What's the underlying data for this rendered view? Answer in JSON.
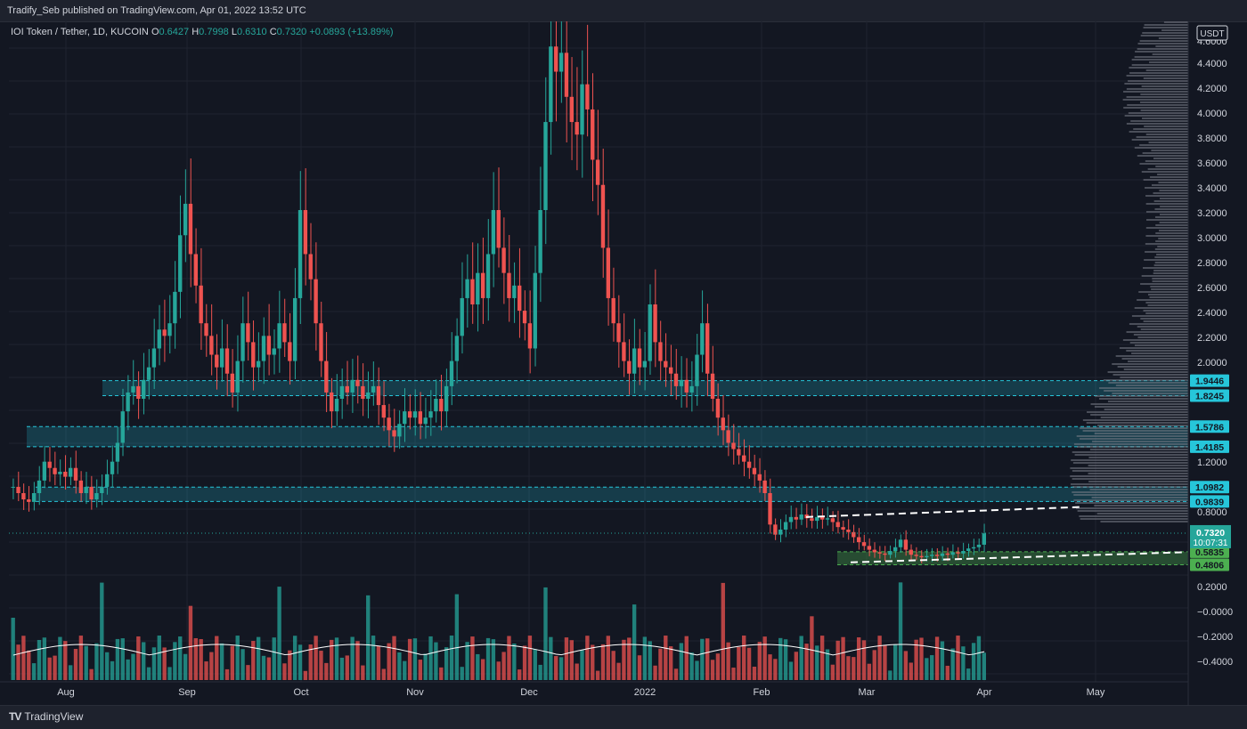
{
  "header": {
    "published": "Tradify_Seb published on TradingView.com, Apr 01, 2022 13:52 UTC"
  },
  "footer": {
    "brand_logo": "TV",
    "brand_text": "TradingView"
  },
  "colors": {
    "background": "#131722",
    "up": "#26a69a",
    "down": "#ef5350",
    "zone": "#26c6da",
    "support_zone": "#4caf50"
  },
  "chart_data": {
    "type": "candlestick",
    "symbol": "IOI Token / Tether, 1D, KUCOIN",
    "ohlc": {
      "O": "0.6427",
      "H": "0.7998",
      "L": "0.6310",
      "C": "0.7320",
      "change": "+0.0893 (+13.89%)"
    },
    "currency": "USDT",
    "y_ticks": [
      "4.6000",
      "4.4000",
      "4.2000",
      "4.0000",
      "3.8000",
      "3.6000",
      "3.4000",
      "3.2000",
      "3.0000",
      "2.8000",
      "2.6000",
      "2.4000",
      "2.2000",
      "2.0000",
      "1.2000",
      "0.8000",
      "0.2000",
      "−0.0000",
      "−0.2000",
      "−0.4000"
    ],
    "x_ticks": [
      "Aug",
      "Sep",
      "Oct",
      "Nov",
      "Dec",
      "2022",
      "Feb",
      "Mar",
      "Apr",
      "May"
    ],
    "ylim": [
      -0.45,
      4.8
    ],
    "price_labels": [
      {
        "text": "1.9446",
        "value": 1.9446,
        "color": "#26c6da"
      },
      {
        "text": "1.8245",
        "value": 1.8245,
        "color": "#26c6da"
      },
      {
        "text": "1.5786",
        "value": 1.5786,
        "color": "#26c6da"
      },
      {
        "text": "1.4185",
        "value": 1.4185,
        "color": "#26c6da"
      },
      {
        "text": "1.0982",
        "value": 1.0982,
        "color": "#26c6da"
      },
      {
        "text": "0.9839",
        "value": 0.9839,
        "color": "#26c6da"
      },
      {
        "text": "0.5835",
        "value": 0.5835,
        "color": "#4caf50"
      },
      {
        "text": "0.4806",
        "value": 0.4806,
        "color": "#4caf50"
      }
    ],
    "current_price": {
      "value": 0.732,
      "text": "0.7320",
      "countdown": "10:07:31"
    },
    "zones": [
      {
        "top": 1.9446,
        "bottom": 1.8245,
        "color": "#26c6da"
      },
      {
        "top": 1.5786,
        "bottom": 1.4185,
        "color": "#26c6da"
      },
      {
        "top": 1.0982,
        "bottom": 0.9839,
        "color": "#26c6da"
      },
      {
        "top": 0.5835,
        "bottom": 0.4806,
        "color": "#4caf50"
      }
    ],
    "close_series": [
      1.1,
      1.05,
      1.0,
      0.98,
      1.05,
      1.15,
      1.3,
      1.25,
      1.2,
      1.22,
      1.18,
      1.25,
      1.15,
      1.05,
      1.1,
      1.0,
      1.05,
      1.1,
      1.2,
      1.3,
      1.45,
      1.7,
      1.85,
      1.9,
      1.8,
      1.95,
      2.05,
      2.2,
      2.35,
      2.3,
      2.4,
      2.65,
      3.1,
      3.35,
      2.95,
      2.7,
      2.4,
      2.3,
      2.15,
      2.05,
      2.2,
      2.0,
      1.85,
      2.1,
      2.4,
      2.25,
      2.05,
      2.1,
      2.3,
      2.15,
      2.2,
      2.4,
      2.25,
      2.1,
      2.6,
      3.3,
      2.95,
      2.75,
      2.4,
      2.1,
      1.85,
      1.7,
      1.8,
      1.9,
      1.85,
      1.95,
      1.9,
      1.8,
      1.85,
      1.9,
      1.75,
      1.65,
      1.55,
      1.5,
      1.6,
      1.7,
      1.65,
      1.7,
      1.6,
      1.65,
      1.7,
      1.8,
      1.7,
      1.9,
      2.1,
      2.3,
      2.6,
      2.75,
      2.55,
      2.8,
      2.6,
      2.95,
      3.3,
      3.0,
      2.8,
      2.6,
      2.7,
      2.5,
      2.4,
      2.2,
      2.8,
      3.3,
      4.0,
      4.6,
      4.4,
      4.55,
      4.2,
      4.0,
      3.9,
      4.3,
      4.1,
      3.7,
      3.5,
      3.0,
      2.6,
      2.4,
      2.25,
      2.1,
      2.0,
      2.2,
      2.05,
      2.1,
      2.55,
      2.25,
      2.1,
      2.05,
      2.0,
      1.9,
      1.95,
      1.85,
      1.9,
      2.15,
      2.4,
      2.0,
      1.8,
      1.65,
      1.55,
      1.45,
      1.4,
      1.35,
      1.3,
      1.25,
      1.2,
      1.15,
      1.05,
      0.8,
      0.72,
      0.76,
      0.82,
      0.86,
      0.84,
      0.88,
      0.85,
      0.83,
      0.86,
      0.84,
      0.85,
      0.82,
      0.78,
      0.76,
      0.74,
      0.7,
      0.66,
      0.63,
      0.6,
      0.58,
      0.57,
      0.56,
      0.59,
      0.62,
      0.68,
      0.6,
      0.56,
      0.55,
      0.54,
      0.55,
      0.56,
      0.55,
      0.57,
      0.56,
      0.58,
      0.57,
      0.59,
      0.61,
      0.62,
      0.64,
      0.73
    ]
  }
}
